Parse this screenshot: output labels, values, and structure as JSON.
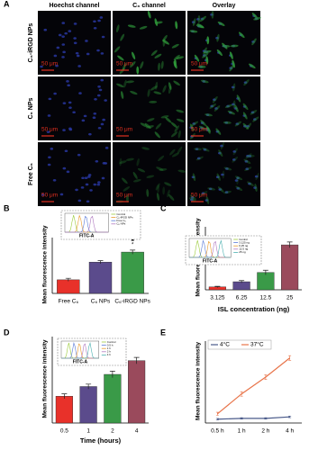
{
  "panel_labels": [
    "A",
    "B",
    "C",
    "D",
    "E"
  ],
  "panel_a": {
    "columns": [
      "Hoechst channel",
      "C₆ channel",
      "Overlay"
    ],
    "rows": [
      "C₆-iRGD NPs",
      "C₆ NPs",
      "Free C₆"
    ],
    "scale_bar": "50 μm"
  },
  "chart_data": [
    {
      "type": "bar",
      "ylabel": "Mean fluorescence intensity",
      "categories": [
        "Free C₆",
        "C₆ NPs",
        "C₆-iRGD NPs"
      ],
      "values": [
        0.27,
        0.62,
        0.82
      ],
      "errors": [
        0.03,
        0.03,
        0.04
      ],
      "colors": [
        "#e8312a",
        "#5b4b8c",
        "#3a9a48"
      ],
      "ylim": [
        0,
        1
      ],
      "annotations": [
        "▲",
        "*"
      ],
      "inset": {
        "xlabel": "FITC-A",
        "legend": [
          {
            "name": "Control",
            "color": "#9ccc3c"
          },
          {
            "name": "C₆-iRGD NPs",
            "color": "#e89a2c"
          },
          {
            "name": "Free C₆",
            "color": "#5a7ad8"
          },
          {
            "name": "C₆ NPs",
            "color": "#b07ac0"
          }
        ]
      }
    },
    {
      "type": "bar",
      "ylabel": "Mean fluorescence intensity",
      "xlabel": "ISL concentration (ng)",
      "categories": [
        "3.125",
        "6.25",
        "12.5",
        "25"
      ],
      "values": [
        0.05,
        0.14,
        0.3,
        0.78
      ],
      "errors": [
        0.01,
        0.02,
        0.04,
        0.05
      ],
      "colors": [
        "#e8312a",
        "#5b4b8c",
        "#3a9a48",
        "#9a4a5c"
      ],
      "ylim": [
        0,
        1
      ],
      "inset": {
        "xlabel": "FITC-A",
        "legend": [
          {
            "name": "Control",
            "color": "#9ccc3c"
          },
          {
            "name": "3.125 ng",
            "color": "#5a7ad8"
          },
          {
            "name": "6.25 ng",
            "color": "#e89a2c"
          },
          {
            "name": "12.5 ng",
            "color": "#b07ac0"
          },
          {
            "name": "25 ng",
            "color": "#4ab0b0"
          }
        ]
      }
    },
    {
      "type": "bar",
      "ylabel": "Mean fluorescence intensity",
      "xlabel": "Time (hours)",
      "categories": [
        "0.5",
        "1",
        "2",
        "4"
      ],
      "values": [
        0.33,
        0.45,
        0.6,
        0.77
      ],
      "errors": [
        0.03,
        0.03,
        0.04,
        0.04
      ],
      "colors": [
        "#e8312a",
        "#5b4b8c",
        "#3a9a48",
        "#9a4a5c"
      ],
      "ylim": [
        0,
        1
      ],
      "inset": {
        "xlabel": "FITC-A",
        "legend": [
          {
            "name": "Control",
            "color": "#9ccc3c"
          },
          {
            "name": "0.5 h",
            "color": "#5a7ad8"
          },
          {
            "name": "1 h",
            "color": "#e89a2c"
          },
          {
            "name": "2 h",
            "color": "#b07ac0"
          },
          {
            "name": "4 h",
            "color": "#4ab0b0"
          }
        ]
      }
    },
    {
      "type": "line",
      "ylabel": "Mean fluorescence intensity",
      "categories": [
        "0.5 h",
        "1 h",
        "2 h",
        "4 h"
      ],
      "ylim": [
        0,
        1
      ],
      "series": [
        {
          "name": "4°C",
          "color": "#4a5a8a",
          "values": [
            0.05,
            0.06,
            0.06,
            0.08
          ],
          "errors": [
            0.01,
            0.01,
            0.01,
            0.01
          ]
        },
        {
          "name": "37°C",
          "color": "#e8744a",
          "values": [
            0.12,
            0.38,
            0.6,
            0.85
          ],
          "errors": [
            0.02,
            0.03,
            0.03,
            0.03
          ]
        }
      ]
    }
  ]
}
